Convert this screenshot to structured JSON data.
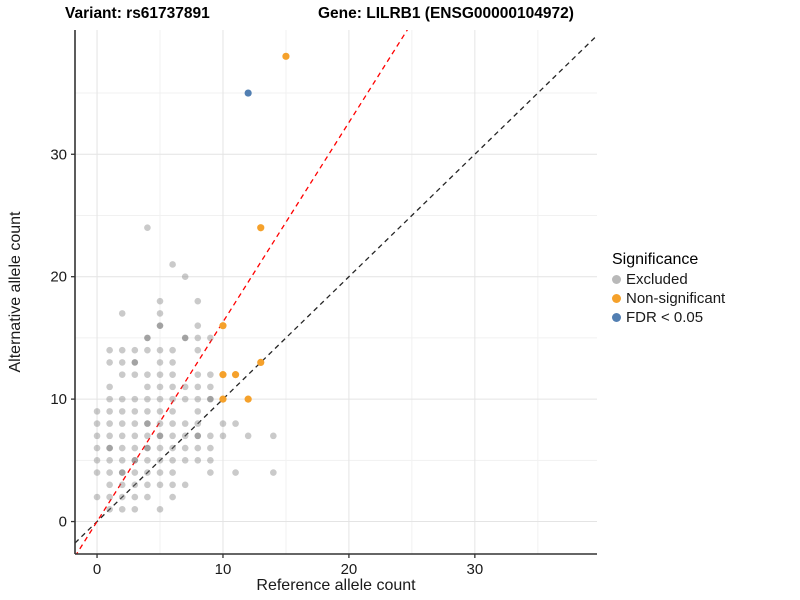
{
  "chart_data": {
    "type": "scatter",
    "title_left": "Variant: rs61737891",
    "title_right": "Gene: LILRB1 (ENSG00000104972)",
    "xlabel": "Reference allele count",
    "ylabel": "Alternative allele count",
    "xlim": [
      -1.75,
      39.7
    ],
    "ylim": [
      -2.65,
      40.15
    ],
    "x_major_ticks": [
      0,
      10,
      20,
      30
    ],
    "y_major_ticks": [
      0,
      10,
      20,
      30
    ],
    "x_minor_ticks": [
      5,
      15,
      25,
      35
    ],
    "y_minor_ticks": [
      5,
      15,
      25,
      35
    ],
    "grid": true,
    "colors": {
      "background": "#ffffff",
      "major_grid": "#e4e4e4",
      "minor_grid": "#f1f1f1",
      "axis_line": "#333333",
      "excluded": "#808080",
      "non_significant": "#F5A12B",
      "fdr": "#527FB2",
      "identity_line": "#262626",
      "expected_line": "#FF0000"
    },
    "legend": {
      "title": "Significance",
      "position": "right",
      "items": [
        {
          "label": "Excluded",
          "color": "#b9b9b9"
        },
        {
          "label": "Non-significant",
          "color": "#F5A12B"
        },
        {
          "label": "FDR < 0.05",
          "color": "#527FB2"
        }
      ]
    },
    "lines": [
      {
        "name": "identity-line",
        "slope": 1,
        "intercept": 0,
        "color": "#262626",
        "dash": "5,4"
      },
      {
        "name": "expected-ratio-line",
        "slope": 1.63,
        "intercept": 0,
        "color": "#FF0000",
        "dash": "5,4"
      }
    ],
    "series": [
      {
        "name": "Excluded",
        "color": "#808080",
        "base_opacity": 0.42,
        "overlap_opacity": 0.72,
        "radius": 3.3,
        "points": [
          [
            4,
            24
          ],
          [
            6,
            21
          ],
          [
            7,
            20
          ],
          [
            5,
            18
          ],
          [
            8,
            18
          ],
          [
            2,
            17
          ],
          [
            5,
            17
          ],
          [
            5,
            16,
            2
          ],
          [
            8,
            16
          ],
          [
            4,
            15,
            2
          ],
          [
            7,
            15,
            2
          ],
          [
            8,
            15
          ],
          [
            9,
            15
          ],
          [
            1,
            14
          ],
          [
            2,
            14
          ],
          [
            3,
            14
          ],
          [
            4,
            14
          ],
          [
            5,
            14
          ],
          [
            6,
            14
          ],
          [
            8,
            14
          ],
          [
            1,
            13
          ],
          [
            2,
            13
          ],
          [
            3,
            13,
            2
          ],
          [
            5,
            13
          ],
          [
            6,
            13
          ],
          [
            2,
            12
          ],
          [
            3,
            12
          ],
          [
            4,
            12
          ],
          [
            5,
            12
          ],
          [
            6,
            12
          ],
          [
            8,
            12
          ],
          [
            9,
            12
          ],
          [
            1,
            11
          ],
          [
            4,
            11
          ],
          [
            5,
            11
          ],
          [
            6,
            11
          ],
          [
            7,
            11
          ],
          [
            8,
            11
          ],
          [
            9,
            11
          ],
          [
            1,
            10
          ],
          [
            2,
            10
          ],
          [
            3,
            10
          ],
          [
            4,
            10
          ],
          [
            5,
            10
          ],
          [
            6,
            10
          ],
          [
            7,
            10
          ],
          [
            8,
            10
          ],
          [
            9,
            10,
            2
          ],
          [
            0,
            9
          ],
          [
            1,
            9
          ],
          [
            2,
            9
          ],
          [
            3,
            9
          ],
          [
            4,
            9
          ],
          [
            5,
            9
          ],
          [
            6,
            9
          ],
          [
            8,
            9
          ],
          [
            0,
            8
          ],
          [
            1,
            8
          ],
          [
            2,
            8
          ],
          [
            3,
            8
          ],
          [
            4,
            8,
            2
          ],
          [
            5,
            8
          ],
          [
            6,
            8
          ],
          [
            7,
            8
          ],
          [
            8,
            8
          ],
          [
            10,
            8
          ],
          [
            11,
            8
          ],
          [
            0,
            7
          ],
          [
            1,
            7
          ],
          [
            2,
            7
          ],
          [
            3,
            7
          ],
          [
            4,
            7
          ],
          [
            5,
            7,
            2
          ],
          [
            6,
            7
          ],
          [
            7,
            7
          ],
          [
            8,
            7,
            2
          ],
          [
            9,
            7
          ],
          [
            10,
            7
          ],
          [
            12,
            7
          ],
          [
            14,
            7
          ],
          [
            0,
            6
          ],
          [
            1,
            6,
            2
          ],
          [
            2,
            6
          ],
          [
            3,
            6
          ],
          [
            4,
            6,
            2
          ],
          [
            5,
            6
          ],
          [
            6,
            6
          ],
          [
            7,
            6
          ],
          [
            8,
            6
          ],
          [
            9,
            6
          ],
          [
            0,
            5
          ],
          [
            1,
            5
          ],
          [
            2,
            5
          ],
          [
            3,
            5,
            2
          ],
          [
            4,
            5
          ],
          [
            5,
            5
          ],
          [
            6,
            5
          ],
          [
            7,
            5
          ],
          [
            8,
            5
          ],
          [
            9,
            5
          ],
          [
            0,
            4
          ],
          [
            1,
            4
          ],
          [
            2,
            4,
            2
          ],
          [
            3,
            4
          ],
          [
            4,
            4
          ],
          [
            5,
            4
          ],
          [
            6,
            4
          ],
          [
            9,
            4
          ],
          [
            11,
            4
          ],
          [
            14,
            4
          ],
          [
            1,
            3
          ],
          [
            2,
            3
          ],
          [
            3,
            3
          ],
          [
            4,
            3
          ],
          [
            5,
            3
          ],
          [
            6,
            3
          ],
          [
            7,
            3
          ],
          [
            0,
            2
          ],
          [
            1,
            2
          ],
          [
            2,
            2
          ],
          [
            3,
            2
          ],
          [
            4,
            2
          ],
          [
            6,
            2
          ],
          [
            1,
            1
          ],
          [
            2,
            1
          ],
          [
            3,
            1
          ],
          [
            5,
            1
          ]
        ]
      },
      {
        "name": "Non-significant",
        "color": "#F5A12B",
        "base_opacity": 1,
        "radius": 3.6,
        "points": [
          [
            10,
            10
          ],
          [
            12,
            10
          ],
          [
            10,
            12
          ],
          [
            11,
            12
          ],
          [
            13,
            13
          ],
          [
            10,
            16
          ],
          [
            13,
            24
          ],
          [
            15,
            38
          ]
        ]
      },
      {
        "name": "FDR < 0.05",
        "color": "#527FB2",
        "base_opacity": 1,
        "radius": 3.6,
        "points": [
          [
            12,
            35
          ]
        ]
      }
    ]
  }
}
